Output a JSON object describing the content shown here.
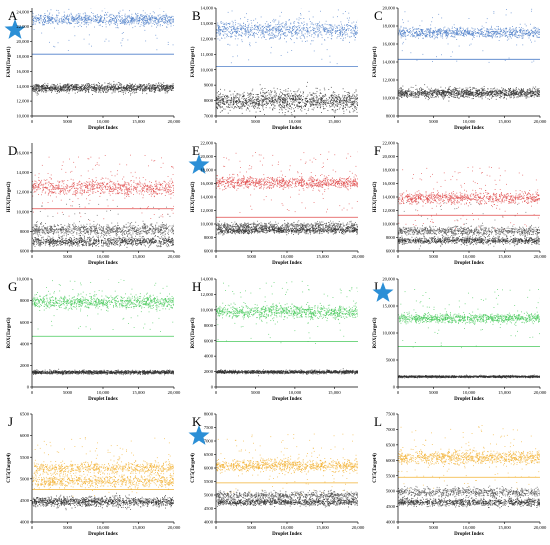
{
  "panels": [
    {
      "letter": "A",
      "star": true,
      "ylabel": "FAM(Target1)",
      "xlabel": "Droplet Index",
      "yticks": [
        10000,
        12000,
        14000,
        16000,
        18000,
        20000,
        22000,
        24000
      ],
      "xticks": [
        0,
        5000,
        10000,
        15000,
        20000
      ],
      "xmax": 20000,
      "ylim": [
        10000,
        24500
      ],
      "threshold": 18300,
      "threshold_color": "#4f7fc9",
      "pos_color": "#4f7fc9",
      "clusters": [
        {
          "mean": 23000,
          "spread": 380,
          "color": "#4f7fc9",
          "kind": "pos",
          "n": 900,
          "outliers": 80
        },
        {
          "mean": 13800,
          "spread": 280,
          "color": "#333333",
          "kind": "neg",
          "n": 1300,
          "outliers": 0
        }
      ]
    },
    {
      "letter": "B",
      "star": false,
      "ylabel": "FAM(Target1)",
      "xlabel": "Droplet Index",
      "yticks": [
        7000,
        8000,
        9000,
        10000,
        11000,
        12000,
        13000,
        14000
      ],
      "xticks": [
        0,
        5000,
        10000,
        15000
      ],
      "xmax": 18000,
      "ylim": [
        7000,
        14000
      ],
      "threshold": 10200,
      "threshold_color": "#4f7fc9",
      "pos_color": "#4f7fc9",
      "clusters": [
        {
          "mean": 12600,
          "spread": 300,
          "color": "#4f7fc9",
          "kind": "pos",
          "n": 900,
          "outliers": 60
        },
        {
          "mean": 8000,
          "spread": 320,
          "color": "#333333",
          "kind": "neg",
          "n": 1300,
          "outliers": 0
        }
      ]
    },
    {
      "letter": "C",
      "star": false,
      "ylabel": "FAM(Target1)",
      "xlabel": "Droplet Index",
      "yticks": [
        8000,
        10000,
        12000,
        14000,
        16000,
        18000,
        20000
      ],
      "xticks": [
        0,
        5000,
        10000,
        15000,
        20000
      ],
      "xmax": 20000,
      "ylim": [
        8000,
        20000
      ],
      "threshold": 14300,
      "threshold_color": "#4f7fc9",
      "pos_color": "#4f7fc9",
      "clusters": [
        {
          "mean": 17300,
          "spread": 280,
          "color": "#4f7fc9",
          "kind": "pos",
          "n": 900,
          "outliers": 60
        },
        {
          "mean": 10600,
          "spread": 260,
          "color": "#333333",
          "kind": "neg",
          "n": 1300,
          "outliers": 0
        }
      ]
    },
    {
      "letter": "D",
      "star": false,
      "ylabel": "HEX(Target2)",
      "xlabel": "Droplet Index",
      "yticks": [
        6000,
        8000,
        10000,
        12000,
        14000,
        16000
      ],
      "xticks": [
        0,
        5000,
        10000,
        15000,
        20000
      ],
      "xmax": 20000,
      "ylim": [
        6000,
        17000
      ],
      "threshold": 10300,
      "threshold_color": "#e04b4b",
      "pos_color": "#e04b4b",
      "clusters": [
        {
          "mean": 12500,
          "spread": 380,
          "color": "#e04b4b",
          "kind": "pos",
          "n": 800,
          "outliers": 90
        },
        {
          "mean": 8200,
          "spread": 300,
          "color": "#555555",
          "kind": "neg",
          "n": 900,
          "outliers": 40
        },
        {
          "mean": 7000,
          "spread": 220,
          "color": "#333333",
          "kind": "neg",
          "n": 900,
          "outliers": 0
        }
      ]
    },
    {
      "letter": "E",
      "star": true,
      "ylabel": "HEX(Target2)",
      "xlabel": "Droplet Index",
      "yticks": [
        6000,
        8000,
        10000,
        12000,
        14000,
        16000,
        18000,
        20000,
        22000
      ],
      "xticks": [
        0,
        5000,
        10000,
        15000,
        20000
      ],
      "xmax": 20000,
      "ylim": [
        6000,
        22000
      ],
      "threshold": 11000,
      "threshold_color": "#e04b4b",
      "pos_color": "#e04b4b",
      "clusters": [
        {
          "mean": 16200,
          "spread": 420,
          "color": "#e04b4b",
          "kind": "pos",
          "n": 900,
          "outliers": 90
        },
        {
          "mean": 9800,
          "spread": 250,
          "color": "#555555",
          "kind": "neg",
          "n": 700,
          "outliers": 0
        },
        {
          "mean": 9100,
          "spread": 220,
          "color": "#333333",
          "kind": "neg",
          "n": 900,
          "outliers": 0
        }
      ]
    },
    {
      "letter": "F",
      "star": false,
      "ylabel": "HEX(Target2)",
      "xlabel": "Droplet Index",
      "yticks": [
        6000,
        8000,
        10000,
        12000,
        14000,
        16000,
        18000,
        20000,
        22000
      ],
      "xticks": [
        0,
        5000,
        10000,
        15000,
        20000
      ],
      "xmax": 20000,
      "ylim": [
        6000,
        22000
      ],
      "threshold": 11300,
      "threshold_color": "#e04b4b",
      "pos_color": "#e04b4b",
      "clusters": [
        {
          "mean": 13900,
          "spread": 450,
          "color": "#e04b4b",
          "kind": "pos",
          "n": 800,
          "outliers": 90
        },
        {
          "mean": 9000,
          "spread": 330,
          "color": "#555555",
          "kind": "neg",
          "n": 800,
          "outliers": 40
        },
        {
          "mean": 7600,
          "spread": 250,
          "color": "#333333",
          "kind": "neg",
          "n": 900,
          "outliers": 0
        }
      ]
    },
    {
      "letter": "G",
      "star": false,
      "ylabel": "ROX(Target3)",
      "xlabel": "Droplet Index",
      "yticks": [
        0,
        2000,
        4000,
        6000,
        8000,
        10000
      ],
      "xticks": [
        0,
        5000,
        10000,
        15000,
        20000
      ],
      "xmax": 20000,
      "ylim": [
        0,
        10000
      ],
      "threshold": 4700,
      "threshold_color": "#46c95a",
      "pos_color": "#46c95a",
      "clusters": [
        {
          "mean": 7900,
          "spread": 300,
          "color": "#46c95a",
          "kind": "pos",
          "n": 900,
          "outliers": 70
        },
        {
          "mean": 1400,
          "spread": 80,
          "color": "#333333",
          "kind": "neg",
          "n": 1300,
          "outliers": 0
        }
      ]
    },
    {
      "letter": "H",
      "star": false,
      "ylabel": "ROX(Target3)",
      "xlabel": "Droplet Index",
      "yticks": [
        0,
        2000,
        4000,
        6000,
        8000,
        10000,
        12000,
        14000
      ],
      "xticks": [
        0,
        5000,
        10000,
        15000
      ],
      "xmax": 18000,
      "ylim": [
        0,
        14000
      ],
      "threshold": 5900,
      "threshold_color": "#46c95a",
      "pos_color": "#46c95a",
      "clusters": [
        {
          "mean": 9800,
          "spread": 420,
          "color": "#46c95a",
          "kind": "pos",
          "n": 900,
          "outliers": 70
        },
        {
          "mean": 2000,
          "spread": 100,
          "color": "#333333",
          "kind": "neg",
          "n": 1300,
          "outliers": 0
        }
      ]
    },
    {
      "letter": "I",
      "star": true,
      "ylabel": "ROX(Target3)",
      "xlabel": "Droplet Index",
      "yticks": [
        0,
        5000,
        10000,
        15000,
        20000
      ],
      "xticks": [
        0,
        5000,
        10000,
        15000,
        20000
      ],
      "xmax": 20000,
      "ylim": [
        0,
        20000
      ],
      "threshold": 7500,
      "threshold_color": "#46c95a",
      "pos_color": "#46c95a",
      "clusters": [
        {
          "mean": 12800,
          "spread": 420,
          "color": "#46c95a",
          "kind": "pos",
          "n": 900,
          "outliers": 70
        },
        {
          "mean": 2000,
          "spread": 90,
          "color": "#333333",
          "kind": "neg",
          "n": 1300,
          "outliers": 0
        }
      ]
    },
    {
      "letter": "J",
      "star": false,
      "ylabel": "CY5(Target4)",
      "xlabel": "Droplet Index",
      "yticks": [
        4000,
        4500,
        5000,
        5500,
        6000,
        6500
      ],
      "xticks": [
        0,
        5000,
        10000,
        15000,
        20000
      ],
      "xmax": 20000,
      "ylim": [
        4000,
        6500
      ],
      "threshold": 4750,
      "threshold_color": "#f2b233",
      "pos_color": "#f2b233",
      "clusters": [
        {
          "mean": 5250,
          "spread": 70,
          "color": "#f2b233",
          "kind": "pos",
          "n": 700,
          "outliers": 80
        },
        {
          "mean": 4950,
          "spread": 70,
          "color": "#f2b233",
          "kind": "pos",
          "n": 700,
          "outliers": 0
        },
        {
          "mean": 4480,
          "spread": 55,
          "color": "#333333",
          "kind": "neg",
          "n": 1100,
          "outliers": 0
        }
      ]
    },
    {
      "letter": "K",
      "star": true,
      "ylabel": "CY5(Target4)",
      "xlabel": "Droplet Index",
      "yticks": [
        4000,
        4500,
        5000,
        5500,
        6000,
        6500,
        7000,
        7500,
        8000
      ],
      "xticks": [
        0,
        5000,
        10000,
        15000,
        20000
      ],
      "xmax": 20000,
      "ylim": [
        4000,
        8000
      ],
      "threshold": 5450,
      "threshold_color": "#f2b233",
      "pos_color": "#f2b233",
      "clusters": [
        {
          "mean": 6100,
          "spread": 120,
          "color": "#f2b233",
          "kind": "pos",
          "n": 900,
          "outliers": 80
        },
        {
          "mean": 5000,
          "spread": 70,
          "color": "#555555",
          "kind": "neg",
          "n": 700,
          "outliers": 0
        },
        {
          "mean": 4750,
          "spread": 60,
          "color": "#333333",
          "kind": "neg",
          "n": 900,
          "outliers": 0
        }
      ]
    },
    {
      "letter": "L",
      "star": false,
      "ylabel": "CY5(Target4)",
      "xlabel": "Droplet Index",
      "yticks": [
        4000,
        4500,
        5000,
        5500,
        6000,
        6500,
        7000,
        7500
      ],
      "xticks": [
        0,
        5000,
        10000,
        15000,
        20000
      ],
      "xmax": 20000,
      "ylim": [
        4000,
        7500
      ],
      "threshold": 5450,
      "threshold_color": "#f2b233",
      "pos_color": "#f2b233",
      "clusters": [
        {
          "mean": 6100,
          "spread": 110,
          "color": "#f2b233",
          "kind": "pos",
          "n": 900,
          "outliers": 80
        },
        {
          "mean": 4980,
          "spread": 70,
          "color": "#555555",
          "kind": "neg",
          "n": 700,
          "outliers": 0
        },
        {
          "mean": 4650,
          "spread": 60,
          "color": "#333333",
          "kind": "neg",
          "n": 900,
          "outliers": 0
        }
      ]
    }
  ],
  "star_color": "#2b8fd6",
  "chart_data": {
    "type": "scatter",
    "title": "",
    "xlabel": "Droplet Index",
    "panels": [
      "A",
      "B",
      "C",
      "D",
      "E",
      "F",
      "G",
      "H",
      "I",
      "J",
      "K",
      "L"
    ],
    "grid": false
  }
}
